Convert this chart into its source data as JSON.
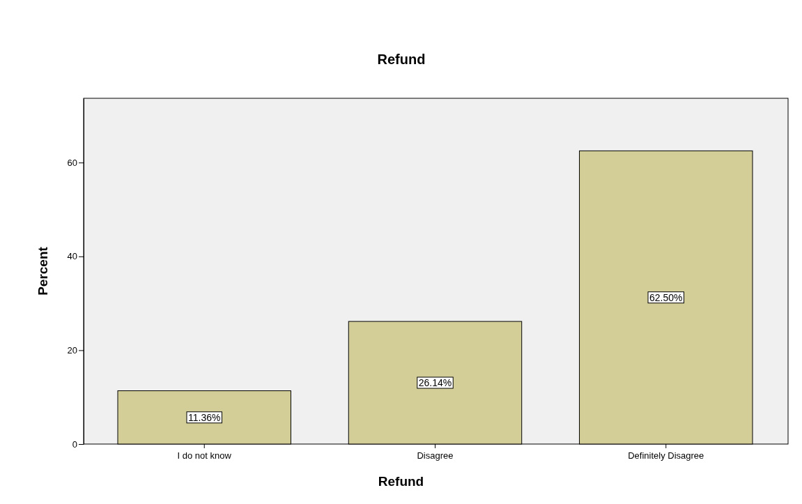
{
  "chart_data": {
    "type": "bar",
    "title": "Refund",
    "xlabel": "Refund",
    "ylabel": "Percent",
    "categories": [
      "I do not know",
      "Disagree",
      "Definitely Disagree"
    ],
    "values": [
      11.36,
      26.14,
      62.5
    ],
    "value_labels": [
      "11.36%",
      "26.14%",
      "62.50%"
    ],
    "color": "#d3ce98",
    "ylim": [
      0,
      73.7
    ],
    "yticks": [
      0,
      20,
      40,
      60
    ],
    "grid": false
  }
}
